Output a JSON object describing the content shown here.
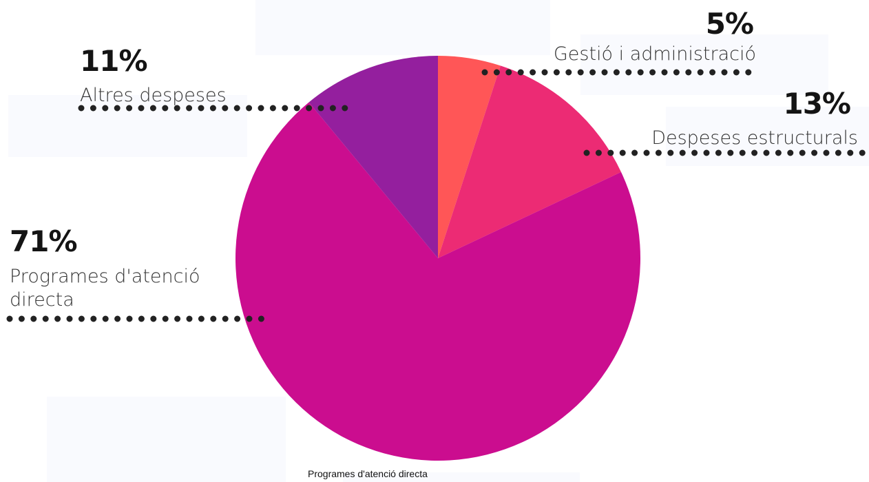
{
  "chart_data": {
    "type": "pie",
    "title": "",
    "categories": [
      "Gestió i administració",
      "Despeses estructurals",
      "Programes d'atenció directa",
      "Altres despeses"
    ],
    "values": [
      5,
      13,
      71,
      11
    ],
    "value_labels": [
      "5%",
      "13%",
      "71%",
      "11%"
    ],
    "colors": [
      "#ff5657",
      "#ec2b74",
      "#cb0d8f",
      "#941f9e"
    ],
    "start_angle_deg": 0,
    "direction": "clockwise",
    "legend": "none"
  },
  "tooltip": {
    "text": "Programes d'atenció directa"
  }
}
